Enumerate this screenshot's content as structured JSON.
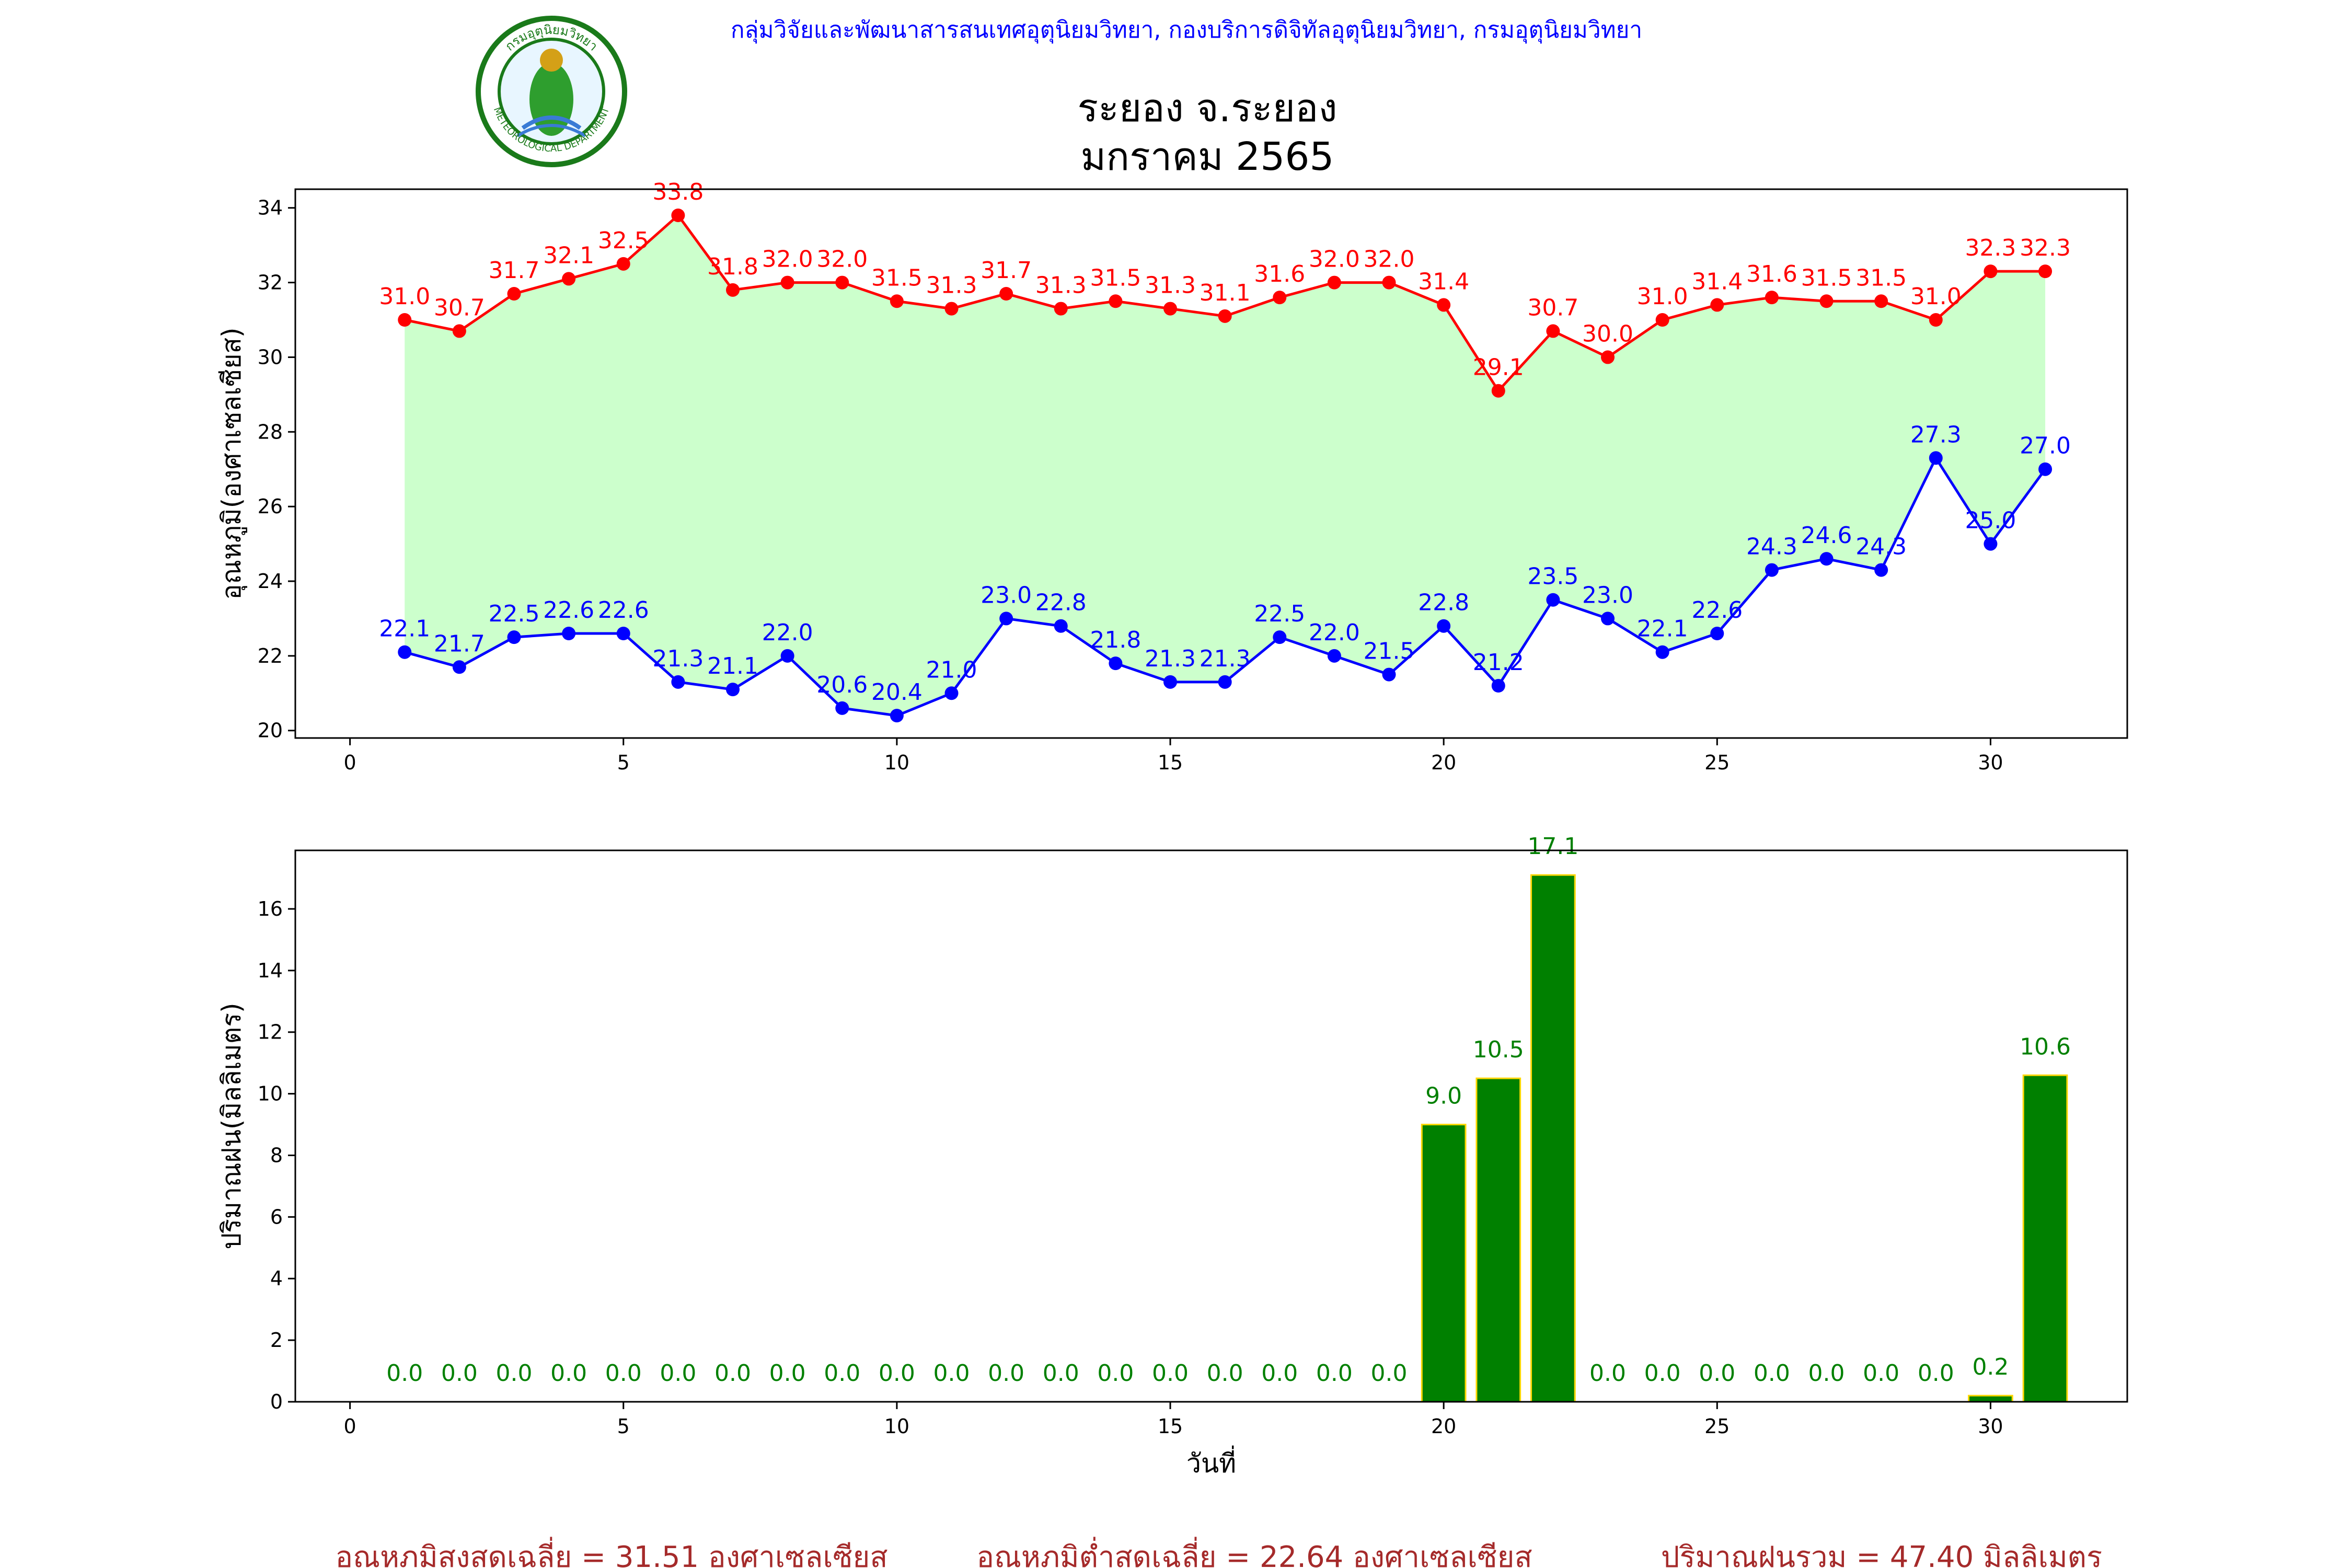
{
  "header": {
    "organization": "กลุ่มวิจัยและพัฒนาสารสนเทศอุตุนิยมวิทยา, กองบริการดิจิทัลอุตุนิยมวิทยา, กรมอุตุนิยมวิทยา",
    "title_line1": "ระยอง จ.ระยอง",
    "title_line2": "มกราคม 2565",
    "logo_text_top": "กรมอุตุนิยมวิทยา",
    "logo_text_bottom": "METEOROLOGICAL DEPARTMENT"
  },
  "colors": {
    "max_series": "#ff0000",
    "min_series": "#0000ff",
    "range_fill": "#ccffcc",
    "rain_bar": "#008000",
    "rain_bar_edge": "#ffd700",
    "rain_label": "#008000",
    "header_text": "#0000ff",
    "summary_text": "#a52a2a"
  },
  "chart_data": [
    {
      "type": "line",
      "ylabel": "อุณหภูมิ(องศาเซลเซียส)",
      "xlim": [
        -1,
        32.5
      ],
      "ylim": [
        19.8,
        34.5
      ],
      "xticks": [
        0,
        5,
        10,
        15,
        20,
        25,
        30
      ],
      "yticks": [
        20,
        22,
        24,
        26,
        28,
        30,
        32,
        34
      ],
      "grid": false,
      "fill_between": true,
      "x": [
        1,
        2,
        3,
        4,
        5,
        6,
        7,
        8,
        9,
        10,
        11,
        12,
        13,
        14,
        15,
        16,
        17,
        18,
        19,
        20,
        21,
        22,
        23,
        24,
        25,
        26,
        27,
        28,
        29,
        30,
        31
      ],
      "series": [
        {
          "key": "max",
          "values": [
            31.0,
            30.7,
            31.7,
            32.1,
            32.5,
            33.8,
            31.8,
            32.0,
            32.0,
            31.5,
            31.3,
            31.7,
            31.3,
            31.5,
            31.3,
            31.1,
            31.6,
            32.0,
            32.0,
            31.4,
            29.1,
            30.7,
            30.0,
            31.0,
            31.4,
            31.6,
            31.5,
            31.5,
            31.0,
            32.3,
            32.3
          ]
        },
        {
          "key": "min",
          "values": [
            22.1,
            21.7,
            22.5,
            22.6,
            22.6,
            21.3,
            21.1,
            22.0,
            20.6,
            20.4,
            21.0,
            23.0,
            22.8,
            21.8,
            21.3,
            21.3,
            22.5,
            22.0,
            21.5,
            22.8,
            21.2,
            23.5,
            23.0,
            22.1,
            22.6,
            24.3,
            24.6,
            24.3,
            27.3,
            25.0,
            27.0
          ]
        }
      ]
    },
    {
      "type": "bar",
      "ylabel": "ปริมาณฝน(มิลลิเมตร)",
      "xlabel": "วันที่",
      "xlim": [
        -1,
        32.5
      ],
      "ylim": [
        0,
        17.9
      ],
      "xticks": [
        0,
        5,
        10,
        15,
        20,
        25,
        30
      ],
      "yticks": [
        0,
        2,
        4,
        6,
        8,
        10,
        12,
        14,
        16
      ],
      "grid": false,
      "x": [
        1,
        2,
        3,
        4,
        5,
        6,
        7,
        8,
        9,
        10,
        11,
        12,
        13,
        14,
        15,
        16,
        17,
        18,
        19,
        20,
        21,
        22,
        23,
        24,
        25,
        26,
        27,
        28,
        29,
        30,
        31
      ],
      "values": [
        0.0,
        0.0,
        0.0,
        0.0,
        0.0,
        0.0,
        0.0,
        0.0,
        0.0,
        0.0,
        0.0,
        0.0,
        0.0,
        0.0,
        0.0,
        0.0,
        0.0,
        0.0,
        0.0,
        9.0,
        10.5,
        17.1,
        0.0,
        0.0,
        0.0,
        0.0,
        0.0,
        0.0,
        0.0,
        0.2,
        10.6
      ]
    }
  ],
  "summary": {
    "avg_max": "อุณหภูมิสูงสุดเฉลี่ย = 31.51 องศาเซลเซียส",
    "avg_min": "อุณหภูมิต่ำสุดเฉลี่ย = 22.64 องศาเซลเซียส",
    "total_rain": "ปริมาณฝนรวม = 47.40 มิลลิเมตร"
  }
}
